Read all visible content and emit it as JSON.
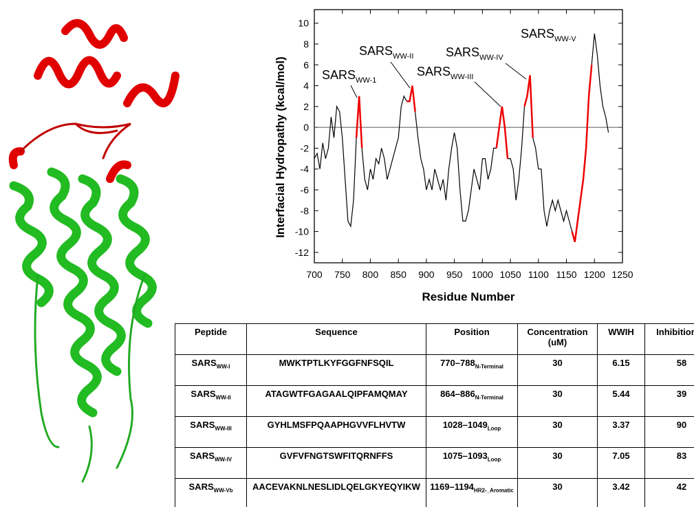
{
  "chart_data": {
    "type": "line",
    "y_label": "Interfacial Hydropathy (kcal/mol)",
    "x_label": "Residue Number",
    "xlim": [
      700,
      1250
    ],
    "ylim": [
      -13,
      11.3
    ],
    "xticks": [
      700,
      750,
      800,
      850,
      900,
      950,
      1000,
      1050,
      1100,
      1150,
      1200,
      1250
    ],
    "yticks": [
      -12,
      -10,
      -8,
      -6,
      -4,
      -2,
      0,
      2,
      4,
      6,
      8,
      10
    ],
    "x": [
      700,
      705,
      710,
      715,
      720,
      725,
      730,
      735,
      740,
      745,
      750,
      755,
      760,
      765,
      770,
      775,
      780,
      785,
      790,
      795,
      800,
      805,
      810,
      815,
      820,
      825,
      830,
      835,
      840,
      845,
      850,
      855,
      860,
      865,
      870,
      875,
      880,
      885,
      890,
      895,
      900,
      905,
      910,
      915,
      920,
      925,
      930,
      935,
      940,
      945,
      950,
      955,
      960,
      965,
      970,
      975,
      980,
      985,
      990,
      995,
      1000,
      1005,
      1010,
      1015,
      1020,
      1025,
      1030,
      1035,
      1040,
      1045,
      1050,
      1055,
      1060,
      1065,
      1070,
      1075,
      1080,
      1085,
      1090,
      1095,
      1100,
      1105,
      1110,
      1115,
      1120,
      1125,
      1130,
      1135,
      1140,
      1145,
      1150,
      1155,
      1160,
      1165,
      1170,
      1175,
      1180,
      1185,
      1190,
      1195,
      1200,
      1205,
      1210,
      1215,
      1220,
      1225
    ],
    "series": [
      {
        "color": "#000000",
        "values": [
          -3,
          -2.5,
          -4,
          -1.5,
          -3,
          -2,
          1,
          -1,
          2,
          1.5,
          -1,
          -5,
          -9,
          -9.5,
          -7,
          -1,
          null,
          -2,
          -5,
          -6,
          -4,
          -5,
          -3,
          -3.5,
          -2,
          -3,
          -5,
          -4,
          -3,
          -2,
          -1,
          2,
          3,
          2.5,
          null,
          null,
          1.5,
          -1,
          -3,
          -4,
          -6,
          -5,
          -6,
          -4,
          -5,
          -6,
          -5,
          -7,
          -4,
          -2,
          -0.5,
          -2,
          -6,
          -9,
          -9,
          -8,
          -6,
          -4,
          -5,
          -6,
          -3,
          -3,
          -5,
          -4,
          -2,
          -2,
          null,
          null,
          null,
          -3,
          -3,
          -4,
          -7,
          -5,
          -2,
          2,
          null,
          null,
          -1,
          -2,
          -4,
          -4,
          -8,
          -9.5,
          -8,
          -7,
          -8,
          -7,
          -8,
          -9,
          -8,
          -9,
          -10,
          null,
          null,
          null,
          null,
          null,
          null,
          6,
          9,
          7,
          4,
          2,
          1,
          -0.5
        ]
      },
      {
        "color": "#ee0000",
        "values": [
          null,
          null,
          null,
          null,
          null,
          null,
          null,
          null,
          null,
          null,
          null,
          null,
          null,
          null,
          null,
          -1,
          3,
          -2,
          null,
          null,
          null,
          null,
          null,
          null,
          null,
          null,
          null,
          null,
          null,
          null,
          null,
          null,
          null,
          2.5,
          2.5,
          4,
          1.5,
          null,
          null,
          null,
          null,
          null,
          null,
          null,
          null,
          null,
          null,
          null,
          null,
          null,
          null,
          null,
          null,
          null,
          null,
          null,
          null,
          null,
          null,
          null,
          null,
          null,
          null,
          null,
          null,
          -2,
          0,
          2,
          0,
          -3,
          null,
          null,
          null,
          null,
          null,
          2,
          3,
          5,
          -1,
          null,
          null,
          null,
          null,
          null,
          null,
          null,
          null,
          null,
          null,
          null,
          null,
          null,
          -10,
          -11,
          -9,
          -7,
          -5,
          -2,
          3,
          6,
          null,
          null,
          null,
          null,
          null,
          null
        ]
      }
    ],
    "annotations": [
      {
        "text": "SARS",
        "sub": "WW-1"
      },
      {
        "text": "SARS",
        "sub": "WW-II"
      },
      {
        "text": "SARS",
        "sub": "WW-III"
      },
      {
        "text": "SARS",
        "sub": "WW-IV"
      },
      {
        "text": "SARS",
        "sub": "WW-V"
      }
    ]
  },
  "table": {
    "header": [
      "Peptide",
      "Sequence",
      "Position",
      "Concentration (uM)",
      "WWIH",
      "Inhibition %"
    ],
    "rows": [
      [
        {
          "text": "SARS",
          "sub": "WW-I"
        },
        "MWKTPTLKYFGGFNFSQIL",
        {
          "text": "770–788",
          "sub": "N-Terminal"
        },
        30,
        6.15,
        58
      ],
      [
        {
          "text": "SARS",
          "sub": "WW-II"
        },
        "ATAGWTFGAGAALQIPFAMQMAY",
        {
          "text": "864–886",
          "sub": "N-Terminal"
        },
        30,
        5.44,
        39
      ],
      [
        {
          "text": "SARS",
          "sub": "WW-III"
        },
        "GYHLMSFPQAAPHGVVFLHVTW",
        {
          "text": "1028–1049",
          "sub": "Loop"
        },
        30,
        3.37,
        90
      ],
      [
        {
          "text": "SARS",
          "sub": "WW-IV"
        },
        "GVFVFNGTSWFITQRNFFS",
        {
          "text": "1075–1093",
          "sub": "Loop"
        },
        30,
        7.05,
        83
      ],
      [
        {
          "text": "SARS",
          "sub": "WW-Vb"
        },
        "AACEVAKNLNESLIDLQELGKYEQYIKW",
        {
          "text": "1169–1194",
          "sub": "HR2-_Aromatic"
        },
        30,
        3.42,
        42
      ]
    ]
  }
}
